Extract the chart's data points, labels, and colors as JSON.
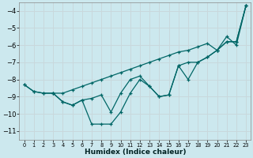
{
  "xlabel": "Humidex (Indice chaleur)",
  "background_color": "#cce8ee",
  "grid_color": "#c8d8dc",
  "line_color": "#006666",
  "xlim": [
    -0.5,
    23.5
  ],
  "ylim": [
    -11.5,
    -3.5
  ],
  "xticks": [
    0,
    1,
    2,
    3,
    4,
    5,
    6,
    7,
    8,
    9,
    10,
    11,
    12,
    13,
    14,
    15,
    16,
    17,
    18,
    19,
    20,
    21,
    22,
    23
  ],
  "yticks": [
    -11,
    -10,
    -9,
    -8,
    -7,
    -6,
    -5,
    -4
  ],
  "series": [
    {
      "x": [
        0,
        1,
        2,
        3,
        4,
        5,
        6,
        7,
        8,
        9,
        10,
        11,
        12,
        13,
        14,
        15,
        16,
        17,
        18,
        19,
        20,
        21,
        22,
        23
      ],
      "y": [
        -8.3,
        -8.7,
        -8.8,
        -8.8,
        -8.8,
        -8.6,
        -8.4,
        -8.2,
        -8.0,
        -7.8,
        -7.6,
        -7.4,
        -7.2,
        -7.0,
        -6.8,
        -6.6,
        -6.4,
        -6.3,
        -6.1,
        -5.9,
        -6.3,
        -5.5,
        -6.0,
        -3.7
      ]
    },
    {
      "x": [
        0,
        1,
        2,
        3,
        4,
        5,
        6,
        7,
        8,
        9,
        10,
        11,
        12,
        13,
        14,
        15,
        16,
        17,
        18,
        19,
        20,
        21,
        22,
        23
      ],
      "y": [
        -8.3,
        -8.7,
        -8.8,
        -8.8,
        -9.3,
        -9.5,
        -9.2,
        -9.1,
        -8.9,
        -9.9,
        -8.8,
        -8.0,
        -7.8,
        -8.4,
        -9.0,
        -8.9,
        -7.2,
        -8.0,
        -7.0,
        -6.7,
        -6.3,
        -5.8,
        -5.8,
        -3.7
      ]
    },
    {
      "x": [
        3,
        4,
        5,
        6,
        7,
        8,
        9,
        10,
        11,
        12,
        13,
        14,
        15,
        16,
        17,
        18,
        19,
        20,
        21,
        22,
        23
      ],
      "y": [
        -8.8,
        -9.3,
        -9.5,
        -9.2,
        -10.6,
        -10.6,
        -10.6,
        -9.9,
        -8.8,
        -8.0,
        -8.4,
        -9.0,
        -8.9,
        -7.2,
        -7.0,
        -7.0,
        -6.7,
        -6.3,
        -5.8,
        -5.8,
        -3.7
      ]
    }
  ]
}
